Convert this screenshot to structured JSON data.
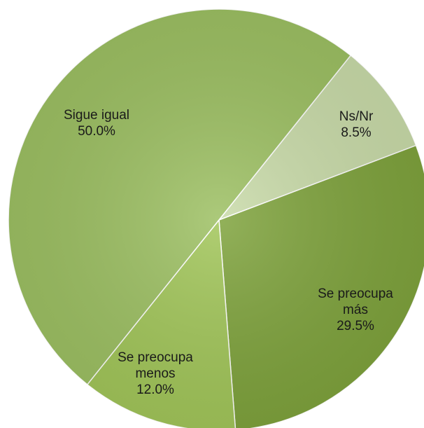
{
  "chart_data": {
    "type": "pie",
    "categories": [
      "Ns/Nr",
      "Se preocupa más",
      "Se preocupa menos",
      "Sigue igual"
    ],
    "values": [
      8.5,
      29.5,
      12.0,
      50.0
    ],
    "value_labels": [
      "8.5%",
      "29.5%",
      "12.0%",
      "50.0%"
    ],
    "colors": [
      "#c9dba9",
      "#7fa33d",
      "#a2c65a",
      "#9dc063"
    ]
  }
}
